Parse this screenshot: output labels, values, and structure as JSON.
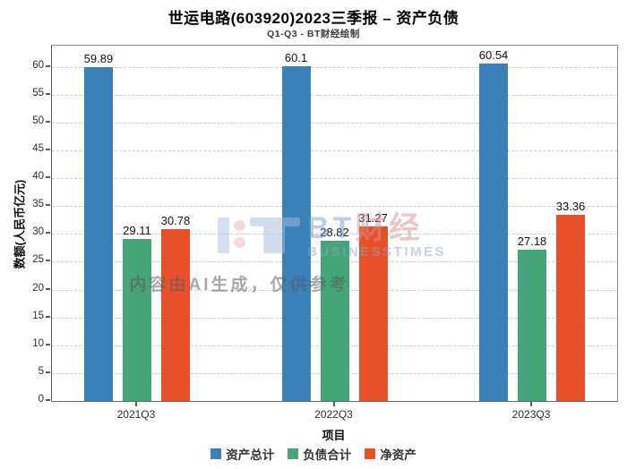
{
  "header": {
    "title": "世运电路(603920)2023三季报 – 资产负债",
    "subtitle": "Q1-Q3 - BT财经绘制"
  },
  "chart_data": {
    "type": "bar",
    "categories": [
      "2021Q3",
      "2022Q3",
      "2023Q3"
    ],
    "series": [
      {
        "name": "资产总计",
        "color": "#3a81ba",
        "values": [
          59.89,
          60.1,
          60.54
        ]
      },
      {
        "name": "负债合计",
        "color": "#46a578",
        "values": [
          29.11,
          28.82,
          27.18
        ]
      },
      {
        "name": "净资产",
        "color": "#e8502a",
        "values": [
          30.78,
          31.27,
          33.36
        ]
      }
    ],
    "title": "世运电路(603920)2023三季报 – 资产负债",
    "subtitle": "Q1-Q3 - BT财经绘制",
    "xlabel": "项目",
    "ylabel": "数额(人民币亿元)",
    "ylim": [
      0,
      63.8
    ],
    "yticks": [
      0,
      5,
      10,
      15,
      20,
      25,
      30,
      35,
      40,
      45,
      50,
      55,
      60
    ],
    "grid": true,
    "grid_style": "dashed",
    "legend_position": "bottom",
    "bar_value_labels": true
  },
  "watermark": {
    "logo_main": "BT",
    "logo_cjk": "财经",
    "logo_sub": "BUSINESSTIMES",
    "ai_note": "内容由AI生成，仅供参考"
  }
}
